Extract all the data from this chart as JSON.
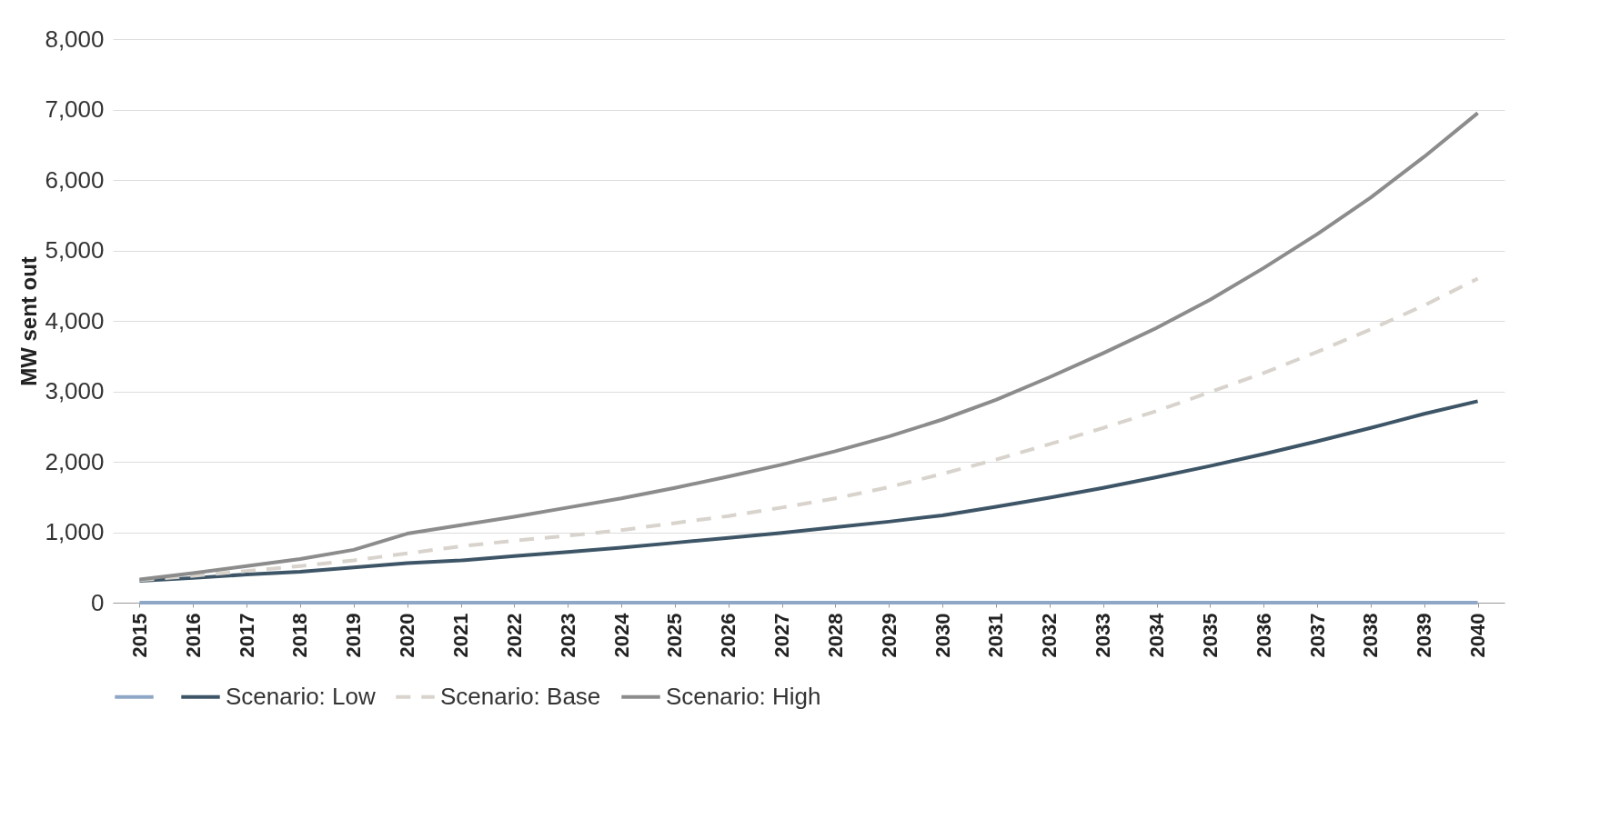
{
  "chart_data": {
    "type": "line",
    "ylabel": "MW sent out",
    "categories": [
      "2015",
      "2016",
      "2017",
      "2018",
      "2019",
      "2020",
      "2021",
      "2022",
      "2023",
      "2024",
      "2025",
      "2026",
      "2027",
      "2028",
      "2029",
      "2030",
      "2031",
      "2032",
      "2033",
      "2034",
      "2035",
      "2036",
      "2037",
      "2038",
      "2039",
      "2040"
    ],
    "series": [
      {
        "color": "#8fa7c6",
        "values": [
          0,
          0,
          0,
          0,
          0,
          0,
          0,
          0,
          0,
          0,
          0,
          0,
          0,
          0,
          0,
          0,
          0,
          0,
          0,
          0,
          0,
          0,
          0,
          0,
          0,
          0
        ]
      },
      {
        "name": "Scenario: Low",
        "color": "#3d5566",
        "values": [
          310,
          350,
          400,
          440,
          500,
          560,
          600,
          660,
          720,
          780,
          850,
          920,
          990,
          1070,
          1150,
          1240,
          1360,
          1490,
          1630,
          1780,
          1940,
          2110,
          2290,
          2480,
          2680,
          2860
        ]
      },
      {
        "name": "Scenario: Base",
        "color": "#d8d3cc",
        "line_style": "dashed",
        "values": [
          320,
          380,
          450,
          520,
          600,
          700,
          800,
          880,
          950,
          1030,
          1130,
          1230,
          1350,
          1480,
          1640,
          1830,
          2030,
          2250,
          2480,
          2720,
          2990,
          3260,
          3560,
          3880,
          4220,
          4600
        ]
      },
      {
        "name": "Scenario: High",
        "color": "#8c8c8c",
        "values": [
          330,
          420,
          520,
          620,
          750,
          980,
          1100,
          1220,
          1350,
          1480,
          1630,
          1790,
          1960,
          2150,
          2360,
          2600,
          2880,
          3200,
          3540,
          3900,
          4300,
          4750,
          5230,
          5750,
          6330,
          6950
        ]
      }
    ],
    "ylim": [
      0,
      8000
    ],
    "yticks": [
      0,
      {
        "value": 1000,
        "label": "1,000"
      },
      {
        "value": 2000,
        "label": "2,000"
      },
      {
        "value": 3000,
        "label": "3,000"
      },
      {
        "value": 4000,
        "label": "4,000"
      },
      {
        "value": 5000,
        "label": "5,000"
      },
      {
        "value": 6000,
        "label": "6,000"
      },
      {
        "value": 7000,
        "label": "7,000"
      },
      {
        "value": 8000,
        "label": "8,000"
      }
    ],
    "grid": "y",
    "legend": "bottom",
    "line_style": "solid"
  }
}
